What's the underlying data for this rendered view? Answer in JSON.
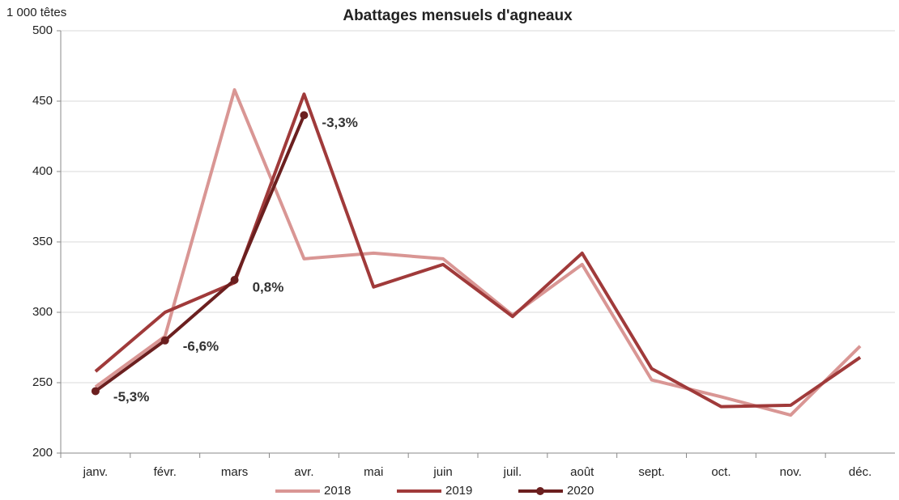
{
  "chart_data": {
    "type": "line",
    "title": "Abattages mensuels d'agneaux",
    "y_label": "1 000 têtes",
    "categories": [
      "janv.",
      "févr.",
      "mars",
      "avr.",
      "mai",
      "juin",
      "juil.",
      "août",
      "sept.",
      "oct.",
      "nov.",
      "déc."
    ],
    "series": [
      {
        "name": "2018",
        "color": "#d99694",
        "markers": false,
        "values": [
          247,
          283,
          458,
          338,
          342,
          338,
          298,
          334,
          252,
          240,
          227,
          276
        ]
      },
      {
        "name": "2019",
        "color": "#a03a3a",
        "markers": false,
        "values": [
          258,
          300,
          321,
          455,
          318,
          334,
          297,
          342,
          260,
          233,
          234,
          268
        ]
      },
      {
        "name": "2020",
        "color": "#6b1f1f",
        "markers": true,
        "values": [
          244,
          280,
          323,
          440,
          null,
          null,
          null,
          null,
          null,
          null,
          null,
          null
        ]
      }
    ],
    "annotations": [
      {
        "text": "-5,3%",
        "series": "2020",
        "category": "janv."
      },
      {
        "text": "-6,6%",
        "series": "2020",
        "category": "févr."
      },
      {
        "text": "0,8%",
        "series": "2020",
        "category": "mars"
      },
      {
        "text": "-3,3%",
        "series": "2020",
        "category": "avr."
      }
    ],
    "ylim": [
      200,
      500
    ],
    "yticks": [
      200,
      250,
      300,
      350,
      400,
      450,
      500
    ],
    "grid": true,
    "legend": "bottom"
  }
}
